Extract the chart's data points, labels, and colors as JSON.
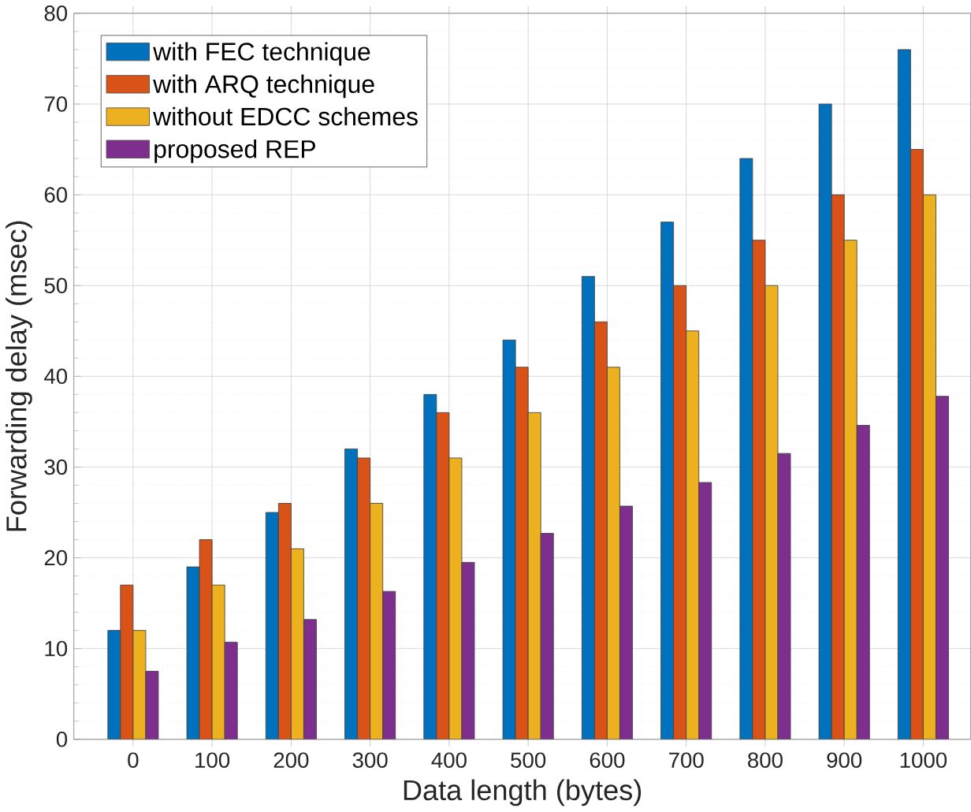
{
  "chart_data": {
    "type": "bar",
    "xlabel": "Data length (bytes)",
    "ylabel": "Forwarding delay (msec)",
    "categories": [
      "0",
      "100",
      "200",
      "300",
      "400",
      "500",
      "600",
      "700",
      "800",
      "900",
      "1000"
    ],
    "ylim": [
      0,
      80
    ],
    "yticks": [
      0,
      10,
      20,
      30,
      40,
      50,
      60,
      70,
      80
    ],
    "grid": true,
    "legend": "top left",
    "series": [
      {
        "name": "with FEC technique",
        "color": "#0072bd",
        "values": [
          12,
          19,
          25,
          32,
          38,
          44,
          51,
          57,
          64,
          70,
          76
        ]
      },
      {
        "name": "with ARQ technique",
        "color": "#d95319",
        "values": [
          17,
          22,
          26,
          31,
          36,
          41,
          46,
          50,
          55,
          60,
          65
        ]
      },
      {
        "name": "without EDCC schemes",
        "color": "#edb120",
        "values": [
          12,
          17,
          21,
          26,
          31,
          36,
          41,
          45,
          50,
          55,
          60
        ]
      },
      {
        "name": "proposed REP",
        "color": "#7e2f8e",
        "values": [
          7.5,
          10.7,
          13.2,
          16.3,
          19.5,
          22.7,
          25.7,
          28.3,
          31.5,
          34.6,
          37.8
        ]
      }
    ]
  }
}
